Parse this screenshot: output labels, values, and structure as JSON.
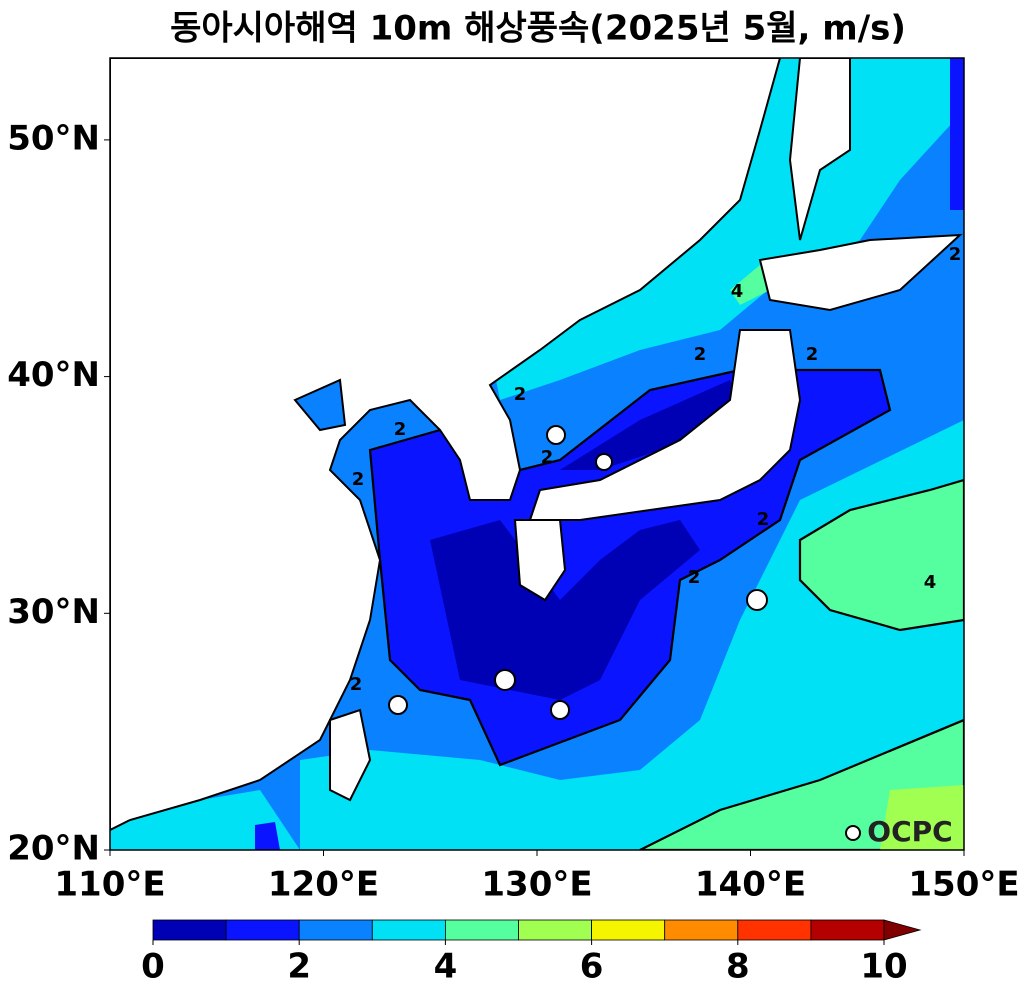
{
  "title": "동아시아해역 10m 해상풍속(2025년 5월, m/s)",
  "map": {
    "xlim": [
      110,
      150
    ],
    "ylim": [
      20,
      53.46
    ],
    "xticks": [
      {
        "value": 110,
        "label": "110°E"
      },
      {
        "value": 120,
        "label": "120°E"
      },
      {
        "value": 130,
        "label": "130°E"
      },
      {
        "value": 140,
        "label": "140°E"
      },
      {
        "value": 150,
        "label": "150°E"
      }
    ],
    "yticks": [
      {
        "value": 20,
        "label": "20°N"
      },
      {
        "value": 30,
        "label": "30°N"
      },
      {
        "value": 40,
        "label": "40°N"
      },
      {
        "value": 50,
        "label": "50°N"
      }
    ],
    "contour_labels": [
      2,
      2,
      2,
      2,
      2,
      2,
      2,
      2,
      2,
      4,
      4,
      2
    ]
  },
  "colorbar": {
    "levels": [
      0,
      1,
      2,
      3,
      4,
      5,
      6,
      7,
      8,
      9,
      10
    ],
    "colors": [
      "#0000b4",
      "#0a14ff",
      "#0a82ff",
      "#00e1f5",
      "#55ff9f",
      "#a0ff50",
      "#f5f500",
      "#ff8c00",
      "#ff3200",
      "#b40000"
    ],
    "extend_color": "#800000",
    "ticks": [
      0,
      2,
      4,
      6,
      8,
      10
    ]
  },
  "watermark": "OCPC"
}
